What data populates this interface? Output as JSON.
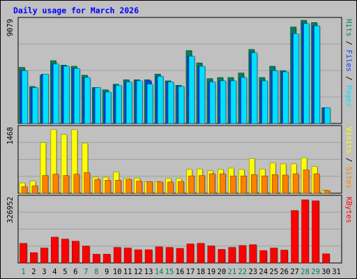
{
  "colors": {
    "background": "#c0c0c0",
    "plot": "#c0c0c0",
    "grid": "#a0a0a0",
    "title": "#0000ff",
    "hits": "#00805c",
    "files": "#0040ff",
    "pages": "#00e0ff",
    "visits": "#ffff00",
    "sites": "#ff8000",
    "kbytes": "#ff0000",
    "weekend": "#00805c",
    "weekday": "#000000"
  },
  "chart_data": {
    "type": "bar",
    "title": "Daily usage for March 2026",
    "categories": [
      "1",
      "2",
      "3",
      "4",
      "5",
      "6",
      "7",
      "8",
      "9",
      "10",
      "11",
      "12",
      "13",
      "14",
      "15",
      "16",
      "17",
      "18",
      "19",
      "20",
      "21",
      "22",
      "23",
      "24",
      "25",
      "26",
      "27",
      "28",
      "29",
      "30",
      "31"
    ],
    "weekend_days": [
      "1",
      "7",
      "8",
      "14",
      "15",
      "21",
      "22",
      "28",
      "29"
    ],
    "panels": [
      {
        "id": "hits-files-pages",
        "max_label": "9079",
        "ymax": 9079,
        "legend": [
          {
            "text": "Pages",
            "color": "#00e0ff"
          },
          {
            "text": " / ",
            "color": "#000000"
          },
          {
            "text": "Files",
            "color": "#0040ff"
          },
          {
            "text": " / ",
            "color": "#000000"
          },
          {
            "text": "Hits",
            "color": "#00805c"
          }
        ],
        "series": [
          {
            "name": "Hits",
            "color": "#00805c",
            "values": [
              5000,
              3300,
              4300,
              5600,
              5200,
              5100,
              4300,
              3200,
              3000,
              3500,
              3900,
              3900,
              3900,
              4400,
              3800,
              3400,
              6500,
              5400,
              4000,
              4100,
              4100,
              4500,
              6600,
              4100,
              5100,
              4700,
              8600,
              9200,
              9000,
              1400,
              0
            ]
          },
          {
            "name": "Files",
            "color": "#0040ff",
            "values": [
              4700,
              3200,
              4400,
              5300,
              5100,
              4900,
              4100,
              3200,
              2800,
              3400,
              3700,
              3800,
              3800,
              4200,
              3700,
              3300,
              6000,
              5100,
              3700,
              3800,
              3800,
              4100,
              6300,
              3800,
              4700,
              4600,
              8000,
              8900,
              8700,
              1400,
              0
            ]
          },
          {
            "name": "Pages",
            "color": "#00e0ff",
            "values": [
              4700,
              3200,
              4400,
              5300,
              5100,
              4900,
              4100,
              3200,
              2800,
              3400,
              3700,
              3800,
              3500,
              4200,
              3700,
              3300,
              6000,
              5100,
              3700,
              3800,
              3800,
              4100,
              6300,
              3800,
              4700,
              4600,
              8000,
              8900,
              8700,
              1400,
              0
            ]
          }
        ]
      },
      {
        "id": "visits-sites",
        "max_label": "1468",
        "ymax": 1468,
        "legend": [
          {
            "text": "Sites",
            "color": "#ff8000"
          },
          {
            "text": " / ",
            "color": "#000000"
          },
          {
            "text": "Visits",
            "color": "#ffff00"
          }
        ],
        "series": [
          {
            "name": "Visits",
            "color": "#ffff00",
            "values": [
              240,
              280,
              1170,
              1470,
              1360,
              1470,
              1160,
              370,
              370,
              490,
              350,
              350,
              270,
              270,
              340,
              340,
              550,
              560,
              520,
              550,
              580,
              550,
              800,
              560,
              700,
              680,
              680,
              820,
              620,
              70,
              0
            ]
          },
          {
            "name": "Sites",
            "color": "#ff8000",
            "values": [
              150,
              170,
              410,
              440,
              410,
              440,
              480,
              320,
              300,
              300,
              320,
              280,
              270,
              260,
              260,
              270,
              400,
              410,
              450,
              450,
              400,
              400,
              430,
              400,
              430,
              420,
              450,
              540,
              450,
              60,
              0
            ]
          }
        ]
      },
      {
        "id": "kbytes",
        "max_label": "326952",
        "ymax": 326952,
        "legend": [
          {
            "text": "KBytes",
            "color": "#ff0000"
          }
        ],
        "series": [
          {
            "name": "KBytes",
            "color": "#ff0000",
            "values": [
              101000,
              53000,
              77000,
              133000,
              123000,
              112000,
              87000,
              45000,
              45000,
              80000,
              77000,
              68000,
              68000,
              83000,
              80000,
              75000,
              98000,
              101000,
              88000,
              70000,
              80000,
              90000,
              94000,
              64000,
              77000,
              66000,
              270000,
              325000,
              320000,
              47000,
              0
            ]
          }
        ]
      }
    ]
  }
}
